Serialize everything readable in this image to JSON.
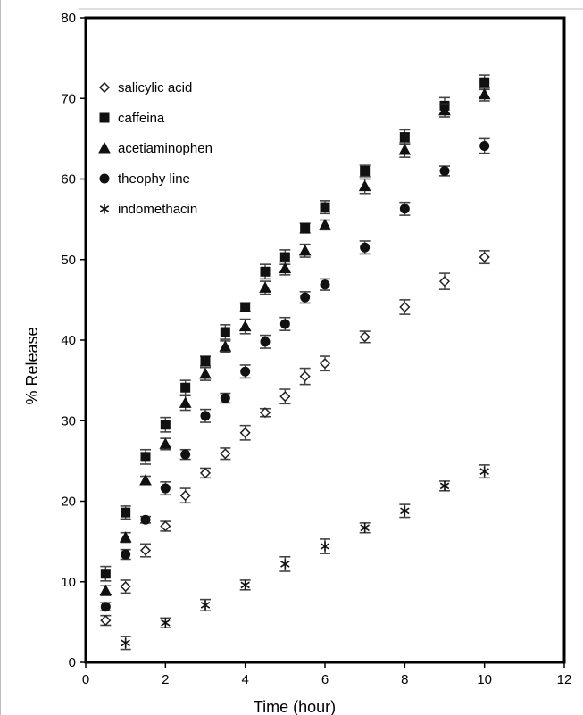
{
  "chart_data": {
    "type": "scatter",
    "xlabel": "Time (hour)",
    "ylabel": "% Release",
    "xlim": [
      0,
      12
    ],
    "ylim": [
      0,
      80
    ],
    "xticks": [
      "0",
      "2",
      "4",
      "6",
      "8",
      "10",
      "12"
    ],
    "yticks": [
      "0",
      "10",
      "20",
      "30",
      "40",
      "50",
      "60",
      "70",
      "80"
    ],
    "grid": false,
    "legend_position": "top-left",
    "series": [
      {
        "name": "salicylic acid",
        "marker": "diamond-open",
        "x": [
          0.5,
          1,
          1.5,
          2,
          2.5,
          3,
          3.5,
          4,
          4.5,
          5,
          5.5,
          6,
          7,
          8,
          9,
          10
        ],
        "y": [
          5.2,
          9.4,
          13.9,
          16.9,
          20.7,
          23.5,
          25.9,
          28.5,
          31.0,
          33.0,
          35.5,
          37.1,
          40.4,
          44.1,
          47.3,
          50.3
        ],
        "err": [
          0.6,
          0.8,
          0.8,
          0.6,
          0.9,
          0.6,
          0.7,
          0.9,
          0.5,
          0.9,
          1.0,
          0.9,
          0.7,
          0.9,
          1.0,
          0.8
        ]
      },
      {
        "name": "caffeina",
        "marker": "square",
        "x": [
          0.5,
          1,
          1.5,
          2,
          2.5,
          3,
          3.5,
          4,
          4.5,
          5,
          5.5,
          6,
          7,
          8,
          9,
          10
        ],
        "y": [
          11.0,
          18.6,
          25.5,
          29.5,
          34.1,
          37.4,
          41.0,
          44.1,
          48.5,
          50.3,
          53.9,
          56.5,
          61.0,
          65.2,
          69.1,
          72.0
        ],
        "err": [
          0.9,
          0.8,
          0.9,
          0.9,
          0.9,
          0.6,
          0.9,
          0.5,
          0.9,
          0.9,
          0.6,
          0.8,
          0.7,
          0.9,
          1.0,
          0.9
        ]
      },
      {
        "name": "acetiaminophen",
        "marker": "triangle",
        "x": [
          0.5,
          1,
          1.5,
          2,
          2.5,
          3,
          3.5,
          4,
          4.5,
          5,
          5.5,
          6,
          7,
          8,
          9,
          10
        ],
        "y": [
          8.9,
          15.5,
          22.6,
          27.1,
          32.2,
          35.8,
          39.2,
          41.7,
          46.5,
          48.9,
          51.1,
          54.3,
          59.1,
          63.6,
          68.5,
          70.5
        ],
        "err": [
          0.6,
          0.6,
          0.5,
          0.7,
          0.9,
          0.8,
          0.7,
          0.9,
          0.8,
          0.8,
          0.8,
          0.6,
          0.9,
          0.9,
          0.8,
          0.8
        ]
      },
      {
        "name": "theophy line",
        "marker": "circle",
        "x": [
          0.5,
          1,
          1.5,
          2,
          2.5,
          3,
          3.5,
          4,
          4.5,
          5,
          5.5,
          6,
          7,
          8,
          9,
          10
        ],
        "y": [
          6.9,
          13.4,
          17.7,
          21.6,
          25.8,
          30.6,
          32.8,
          36.1,
          39.8,
          42.0,
          45.3,
          46.9,
          51.5,
          56.3,
          61.0,
          64.1
        ],
        "err": [
          0.5,
          0.6,
          0.4,
          0.8,
          0.6,
          0.8,
          0.6,
          0.8,
          0.8,
          0.8,
          0.7,
          0.7,
          0.8,
          0.8,
          0.6,
          0.9
        ]
      },
      {
        "name": "indomethacin",
        "marker": "asterisk",
        "x": [
          1,
          2,
          3,
          4,
          5,
          6,
          7,
          8,
          9,
          10
        ],
        "y": [
          2.4,
          4.9,
          7.1,
          9.6,
          12.2,
          14.4,
          16.7,
          18.8,
          21.9,
          23.7
        ],
        "err": [
          0.8,
          0.6,
          0.7,
          0.6,
          0.9,
          0.9,
          0.6,
          0.8,
          0.6,
          0.8
        ]
      }
    ]
  }
}
